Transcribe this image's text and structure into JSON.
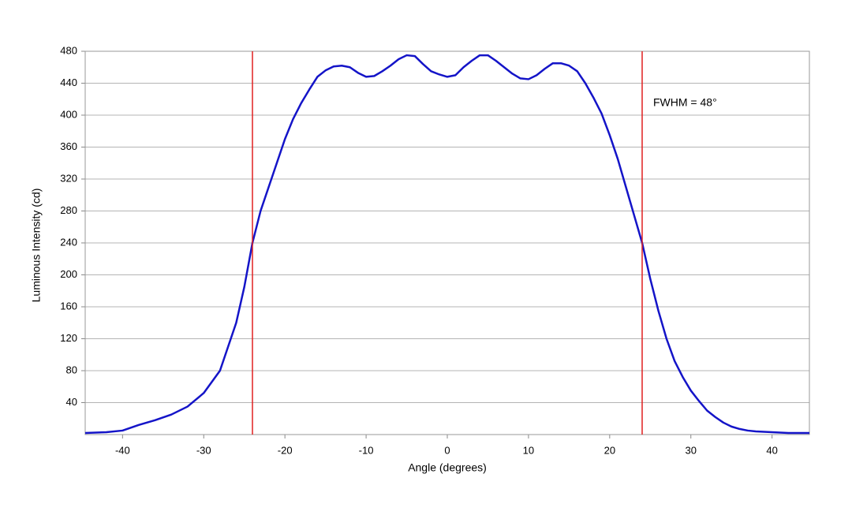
{
  "chart_data": {
    "type": "line",
    "xlabel": "Angle (degrees)",
    "ylabel": "Luminous Intensity (cd)",
    "annotation": "FWHM = 48°",
    "x": [
      -44.6,
      -42,
      -40,
      -38,
      -36,
      -34,
      -32,
      -30,
      -28,
      -26,
      -25,
      -24,
      -23,
      -22,
      -21,
      -20,
      -19,
      -18,
      -17,
      -16,
      -15,
      -14,
      -13,
      -12,
      -11,
      -10,
      -9,
      -8,
      -7,
      -6,
      -5,
      -4,
      -3,
      -2,
      -1,
      0,
      1,
      2,
      3,
      4,
      5,
      6,
      7,
      8,
      9,
      10,
      11,
      12,
      13,
      14,
      15,
      16,
      17,
      18,
      19,
      20,
      21,
      22,
      23,
      24,
      25,
      26,
      27,
      28,
      29,
      30,
      31,
      32,
      33,
      34,
      35,
      36,
      37,
      38,
      40,
      42,
      44.6
    ],
    "series": [
      {
        "color": "#1414c8",
        "values": [
          2,
          3,
          5,
          12,
          18,
          25,
          35,
          52,
          80,
          140,
          185,
          240,
          280,
          310,
          340,
          370,
          395,
          415,
          432,
          448,
          456,
          461,
          462,
          460,
          453,
          448,
          449,
          455,
          462,
          470,
          475,
          474,
          464,
          455,
          451,
          448,
          450,
          460,
          468,
          475,
          475,
          468,
          460,
          452,
          446,
          445,
          450,
          458,
          465,
          465,
          462,
          455,
          440,
          422,
          402,
          375,
          345,
          310,
          275,
          240,
          195,
          155,
          120,
          92,
          72,
          55,
          42,
          30,
          22,
          15,
          10,
          7,
          5,
          4,
          3,
          2,
          2
        ]
      }
    ],
    "vlines": [
      -24,
      24
    ],
    "vline_color": "#e02020",
    "xlim": [
      -44.6,
      44.6
    ],
    "ylim": [
      0,
      480
    ],
    "xticks": [
      -40,
      -30,
      -20,
      -10,
      0,
      10,
      20,
      30,
      40
    ],
    "yticks": [
      40,
      80,
      120,
      160,
      200,
      240,
      280,
      320,
      360,
      400,
      440,
      480
    ],
    "grid": true
  }
}
